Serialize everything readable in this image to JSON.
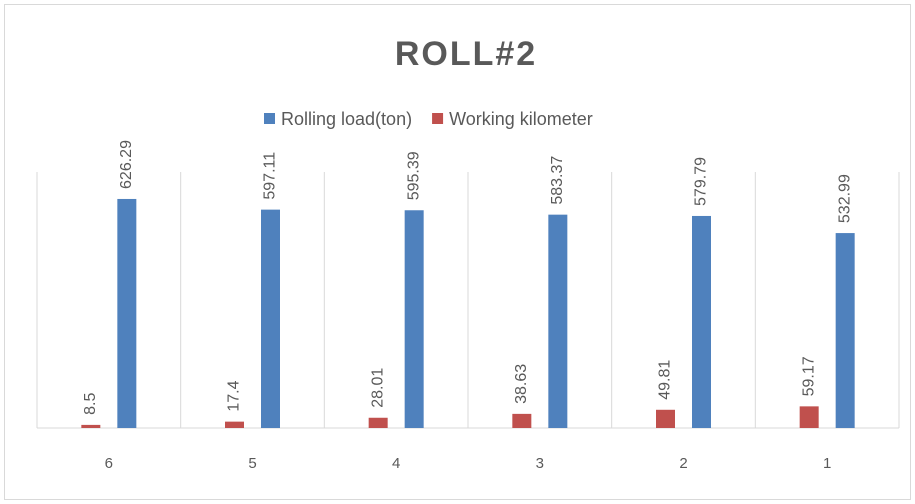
{
  "chart_data": {
    "type": "bar",
    "title": "ROLL#2",
    "categories": [
      "6",
      "5",
      "4",
      "3",
      "2",
      "1"
    ],
    "series": [
      {
        "name": "Working kilometer",
        "color": "#c0504d",
        "values": [
          8.5,
          17.4,
          28.01,
          38.63,
          49.81,
          59.17
        ]
      },
      {
        "name": "Rolling load(ton)",
        "color": "#4f81bd",
        "values": [
          626.29,
          597.11,
          595.39,
          583.37,
          579.79,
          532.99
        ]
      }
    ],
    "ylim": [
      0,
      700
    ]
  }
}
